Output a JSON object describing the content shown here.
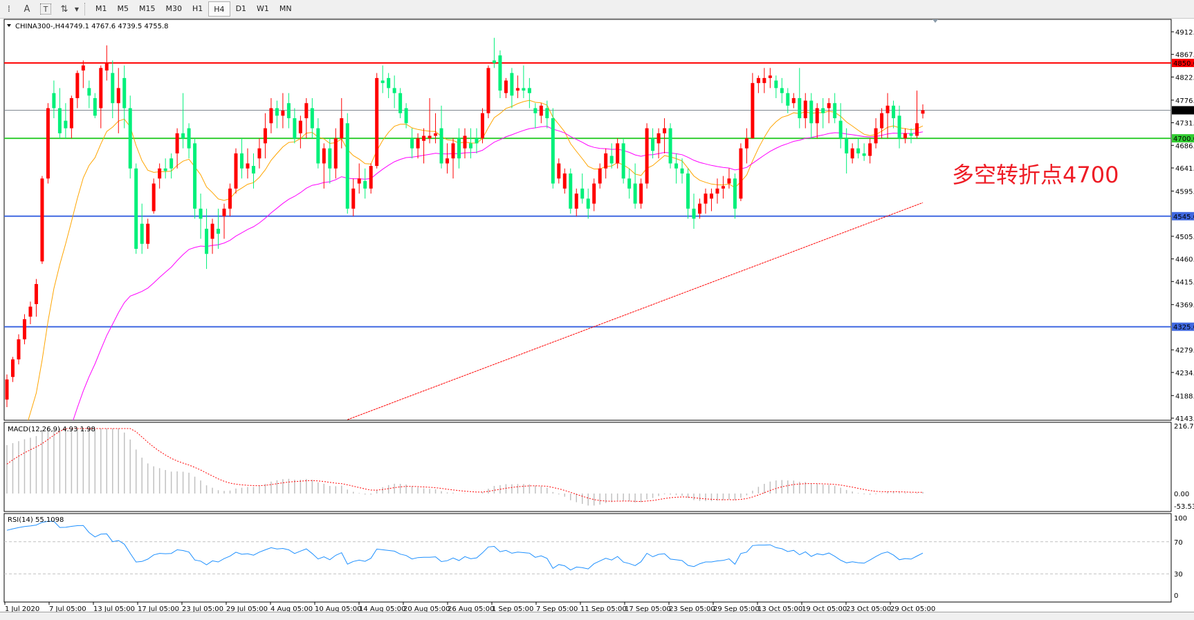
{
  "toolbar": {
    "tools": [
      {
        "icon": "horizontal-lines-icon",
        "glyph": "⁞"
      },
      {
        "icon": "text-icon",
        "glyph": "A"
      },
      {
        "icon": "text-label-icon",
        "glyph": "T"
      },
      {
        "icon": "arrows-icon",
        "glyph": "⇅"
      }
    ],
    "timeframes": [
      "M1",
      "M5",
      "M15",
      "M30",
      "H1",
      "H4",
      "D1",
      "W1",
      "MN"
    ],
    "active_timeframe": "H4"
  },
  "chart_header": {
    "symbol": "CHINA300-,H4",
    "ohlc": "4749.1 4767.6 4739.5 4755.8"
  },
  "annotation": {
    "text": "多空转折点4700",
    "color": "#ee1c25"
  },
  "colors": {
    "bull": "#ff0000",
    "bear": "#00f07a",
    "ma_fast": "#ffa500",
    "ma_mid": "#ff00ff",
    "ma_long": "#ff0000",
    "rsi": "#1e90ff",
    "macd_hist": "#c0c0c0",
    "macd_signal": "#ff0000"
  },
  "price_axis": {
    "min": 4143,
    "max": 4912,
    "ticks": [
      "4912.0",
      "4867.0",
      "4822.0",
      "4776.0",
      "4731.0",
      "4686.0",
      "4641.0",
      "4595.0",
      "4505.0",
      "4460.0",
      "4415.0",
      "4369.0",
      "4279.0",
      "4234.0",
      "4188.0",
      "4143.0"
    ]
  },
  "levels": [
    {
      "value": 4850.0,
      "label": "4850.0",
      "color": "#ff0000",
      "name": "resistance-line"
    },
    {
      "value": 4755.8,
      "label": "4755.8",
      "color": "#808890",
      "label_bg": "#000000",
      "name": "current-price-line"
    },
    {
      "value": 4700.0,
      "label": "4700.0",
      "color": "#32cd32",
      "name": "pivot-line"
    },
    {
      "value": 4545.0,
      "label": "4545.0",
      "color": "#4169e1",
      "name": "support-line"
    },
    {
      "value": 4325.0,
      "label": "4325.0",
      "color": "#4169e1",
      "name": "support-line-2"
    }
  ],
  "chart_data": {
    "type": "candlestick",
    "candles": [
      [
        4180,
        4230,
        4165,
        4220
      ],
      [
        4225,
        4265,
        4215,
        4260
      ],
      [
        4260,
        4310,
        4250,
        4300
      ],
      [
        4300,
        4350,
        4290,
        4340
      ],
      [
        4345,
        4375,
        4330,
        4365
      ],
      [
        4370,
        4420,
        4345,
        4410
      ],
      [
        4455,
        4625,
        4450,
        4620
      ],
      [
        4620,
        4770,
        4610,
        4760
      ],
      [
        4790,
        4815,
        4740,
        4760
      ],
      [
        4760,
        4800,
        4700,
        4710
      ],
      [
        4735,
        4770,
        4700,
        4720
      ],
      [
        4720,
        4785,
        4700,
        4780
      ],
      [
        4780,
        4835,
        4760,
        4830
      ],
      [
        4835,
        4855,
        4800,
        4845
      ],
      [
        4800,
        4815,
        4760,
        4785
      ],
      [
        4780,
        4790,
        4740,
        4745
      ],
      [
        4760,
        4845,
        4720,
        4840
      ],
      [
        4835,
        4885,
        4815,
        4850
      ],
      [
        4830,
        4855,
        4740,
        4770
      ],
      [
        4770,
        4840,
        4710,
        4800
      ],
      [
        4820,
        4845,
        4720,
        4760
      ],
      [
        4760,
        4785,
        4620,
        4640
      ],
      [
        4640,
        4650,
        4470,
        4480
      ],
      [
        4530,
        4570,
        4470,
        4490
      ],
      [
        4490,
        4540,
        4480,
        4530
      ],
      [
        4555,
        4620,
        4550,
        4610
      ],
      [
        4620,
        4650,
        4600,
        4640
      ],
      [
        4640,
        4660,
        4620,
        4635
      ],
      [
        4660,
        4670,
        4620,
        4640
      ],
      [
        4670,
        4720,
        4640,
        4710
      ],
      [
        4710,
        4790,
        4680,
        4700
      ],
      [
        4720,
        4730,
        4660,
        4680
      ],
      [
        4690,
        4700,
        4540,
        4560
      ],
      [
        4560,
        4590,
        4500,
        4540
      ],
      [
        4520,
        4560,
        4440,
        4470
      ],
      [
        4500,
        4540,
        4470,
        4530
      ],
      [
        4520,
        4560,
        4480,
        4510
      ],
      [
        4545,
        4570,
        4500,
        4560
      ],
      [
        4560,
        4610,
        4545,
        4600
      ],
      [
        4600,
        4680,
        4590,
        4670
      ],
      [
        4670,
        4700,
        4620,
        4640
      ],
      [
        4640,
        4680,
        4620,
        4650
      ],
      [
        4645,
        4670,
        4600,
        4630
      ],
      [
        4660,
        4700,
        4640,
        4680
      ],
      [
        4690,
        4750,
        4660,
        4720
      ],
      [
        4730,
        4780,
        4710,
        4760
      ],
      [
        4760,
        4775,
        4720,
        4745
      ],
      [
        4745,
        4790,
        4720,
        4755
      ],
      [
        4770,
        4790,
        4720,
        4740
      ],
      [
        4740,
        4760,
        4690,
        4700
      ],
      [
        4710,
        4745,
        4680,
        4735
      ],
      [
        4740,
        4780,
        4700,
        4770
      ],
      [
        4760,
        4780,
        4700,
        4720
      ],
      [
        4720,
        4740,
        4640,
        4650
      ],
      [
        4650,
        4690,
        4600,
        4680
      ],
      [
        4680,
        4700,
        4610,
        4640
      ],
      [
        4640,
        4720,
        4620,
        4700
      ],
      [
        4700,
        4780,
        4680,
        4740
      ],
      [
        4730,
        4750,
        4550,
        4560
      ],
      [
        4560,
        4620,
        4545,
        4600
      ],
      [
        4610,
        4650,
        4590,
        4620
      ],
      [
        4615,
        4640,
        4580,
        4600
      ],
      [
        4600,
        4650,
        4590,
        4645
      ],
      [
        4645,
        4830,
        4640,
        4820
      ],
      [
        4815,
        4845,
        4790,
        4810
      ],
      [
        4820,
        4830,
        4780,
        4800
      ],
      [
        4800,
        4825,
        4760,
        4790
      ],
      [
        4790,
        4800,
        4740,
        4750
      ],
      [
        4760,
        4770,
        4720,
        4730
      ],
      [
        4700,
        4720,
        4660,
        4680
      ],
      [
        4680,
        4710,
        4660,
        4700
      ],
      [
        4695,
        4720,
        4650,
        4705
      ],
      [
        4700,
        4780,
        4690,
        4705
      ],
      [
        4705,
        4750,
        4690,
        4710
      ],
      [
        4720,
        4765,
        4640,
        4650
      ],
      [
        4650,
        4690,
        4630,
        4660
      ],
      [
        4660,
        4700,
        4620,
        4690
      ],
      [
        4700,
        4720,
        4640,
        4660
      ],
      [
        4680,
        4720,
        4660,
        4705
      ],
      [
        4690,
        4720,
        4660,
        4680
      ],
      [
        4700,
        4720,
        4670,
        4690
      ],
      [
        4700,
        4760,
        4690,
        4750
      ],
      [
        4750,
        4845,
        4740,
        4840
      ],
      [
        4855,
        4900,
        4840,
        4850
      ],
      [
        4865,
        4875,
        4780,
        4795
      ],
      [
        4790,
        4820,
        4780,
        4815
      ],
      [
        4830,
        4840,
        4760,
        4785
      ],
      [
        4795,
        4825,
        4780,
        4800
      ],
      [
        4800,
        4845,
        4780,
        4795
      ],
      [
        4800,
        4820,
        4760,
        4790
      ],
      [
        4760,
        4770,
        4720,
        4750
      ],
      [
        4745,
        4770,
        4730,
        4765
      ],
      [
        4760,
        4775,
        4720,
        4740
      ],
      [
        4740,
        4760,
        4600,
        4610
      ],
      [
        4620,
        4660,
        4610,
        4650
      ],
      [
        4600,
        4640,
        4590,
        4630
      ],
      [
        4630,
        4640,
        4550,
        4560
      ],
      [
        4560,
        4600,
        4545,
        4590
      ],
      [
        4600,
        4630,
        4570,
        4580
      ],
      [
        4580,
        4600,
        4540,
        4560
      ],
      [
        4570,
        4620,
        4555,
        4610
      ],
      [
        4610,
        4650,
        4600,
        4640
      ],
      [
        4640,
        4680,
        4620,
        4670
      ],
      [
        4665,
        4690,
        4640,
        4650
      ],
      [
        4650,
        4700,
        4640,
        4690
      ],
      [
        4690,
        4700,
        4610,
        4620
      ],
      [
        4620,
        4640,
        4580,
        4600
      ],
      [
        4610,
        4650,
        4560,
        4570
      ],
      [
        4570,
        4620,
        4560,
        4610
      ],
      [
        4610,
        4730,
        4600,
        4720
      ],
      [
        4700,
        4720,
        4660,
        4675
      ],
      [
        4690,
        4720,
        4660,
        4710
      ],
      [
        4710,
        4740,
        4670,
        4720
      ],
      [
        4720,
        4730,
        4640,
        4650
      ],
      [
        4650,
        4670,
        4610,
        4640
      ],
      [
        4640,
        4660,
        4610,
        4630
      ],
      [
        4630,
        4640,
        4540,
        4560
      ],
      [
        4560,
        4590,
        4520,
        4540
      ],
      [
        4550,
        4580,
        4540,
        4570
      ],
      [
        4570,
        4600,
        4550,
        4590
      ],
      [
        4580,
        4600,
        4555,
        4590
      ],
      [
        4590,
        4620,
        4570,
        4600
      ],
      [
        4600,
        4625,
        4580,
        4605
      ],
      [
        4610,
        4640,
        4600,
        4620
      ],
      [
        4620,
        4630,
        4540,
        4560
      ],
      [
        4580,
        4690,
        4575,
        4680
      ],
      [
        4680,
        4720,
        4650,
        4700
      ],
      [
        4700,
        4830,
        4700,
        4810
      ],
      [
        4810,
        4825,
        4790,
        4820
      ],
      [
        4810,
        4840,
        4790,
        4820
      ],
      [
        4820,
        4840,
        4800,
        4825
      ],
      [
        4815,
        4825,
        4780,
        4800
      ],
      [
        4800,
        4820,
        4770,
        4790
      ],
      [
        4790,
        4800,
        4750,
        4765
      ],
      [
        4770,
        4790,
        4760,
        4780
      ],
      [
        4780,
        4840,
        4720,
        4740
      ],
      [
        4740,
        4790,
        4720,
        4775
      ],
      [
        4775,
        4790,
        4700,
        4730
      ],
      [
        4730,
        4770,
        4700,
        4760
      ],
      [
        4760,
        4780,
        4720,
        4750
      ],
      [
        4760,
        4780,
        4730,
        4770
      ],
      [
        4770,
        4790,
        4730,
        4740
      ],
      [
        4735,
        4770,
        4680,
        4700
      ],
      [
        4700,
        4720,
        4630,
        4670
      ],
      [
        4660,
        4690,
        4650,
        4680
      ],
      [
        4680,
        4700,
        4660,
        4670
      ],
      [
        4670,
        4690,
        4655,
        4665
      ],
      [
        4665,
        4700,
        4650,
        4690
      ],
      [
        4690,
        4740,
        4680,
        4720
      ],
      [
        4720,
        4760,
        4700,
        4750
      ],
      [
        4750,
        4790,
        4700,
        4765
      ],
      [
        4765,
        4775,
        4720,
        4740
      ],
      [
        4745,
        4765,
        4680,
        4700
      ],
      [
        4700,
        4720,
        4690,
        4710
      ],
      [
        4710,
        4720,
        4690,
        4705
      ],
      [
        4705,
        4795,
        4700,
        4730
      ],
      [
        4749.1,
        4767.6,
        4739.5,
        4755.8
      ]
    ],
    "ma_fast": {
      "period": 12,
      "seed": 3950
    },
    "ma_mid": {
      "period": 40,
      "seed": 3780
    },
    "ma_long": {
      "from_index": 58,
      "from": 4140,
      "to": 4572
    },
    "x_labels": [
      "1 Jul 2020",
      "7 Jul 05:00",
      "13 Jul 05:00",
      "17 Jul 05:00",
      "23 Jul 05:00",
      "29 Jul 05:00",
      "4 Aug 05:00",
      "10 Aug 05:00",
      "14 Aug 05:00",
      "20 Aug 05:00",
      "26 Aug 05:00",
      "1 Sep 05:00",
      "7 Sep 05:00",
      "11 Sep 05:00",
      "17 Sep 05:00",
      "23 Sep 05:00",
      "29 Sep 05:00",
      "13 Oct 05:00",
      "19 Oct 05:00",
      "23 Oct 05:00",
      "29 Oct 05:00"
    ]
  },
  "macd": {
    "label": "MACD(12,26,9) 4.93 1.98",
    "axis": {
      "max": 216.78,
      "min": -53.53,
      "ticks": [
        "216.78",
        "0.00",
        "-53.53"
      ]
    },
    "seeds": {
      "fast": 4000,
      "slow": 3850,
      "signal": 80
    }
  },
  "rsi": {
    "label": "RSI(14) 55.1098",
    "axis": {
      "ticks": [
        "100",
        "70",
        "30",
        "0"
      ],
      "levels": [
        70,
        30
      ]
    },
    "seeds": {
      "avg_gain": 20,
      "avg_loss": 4
    }
  }
}
